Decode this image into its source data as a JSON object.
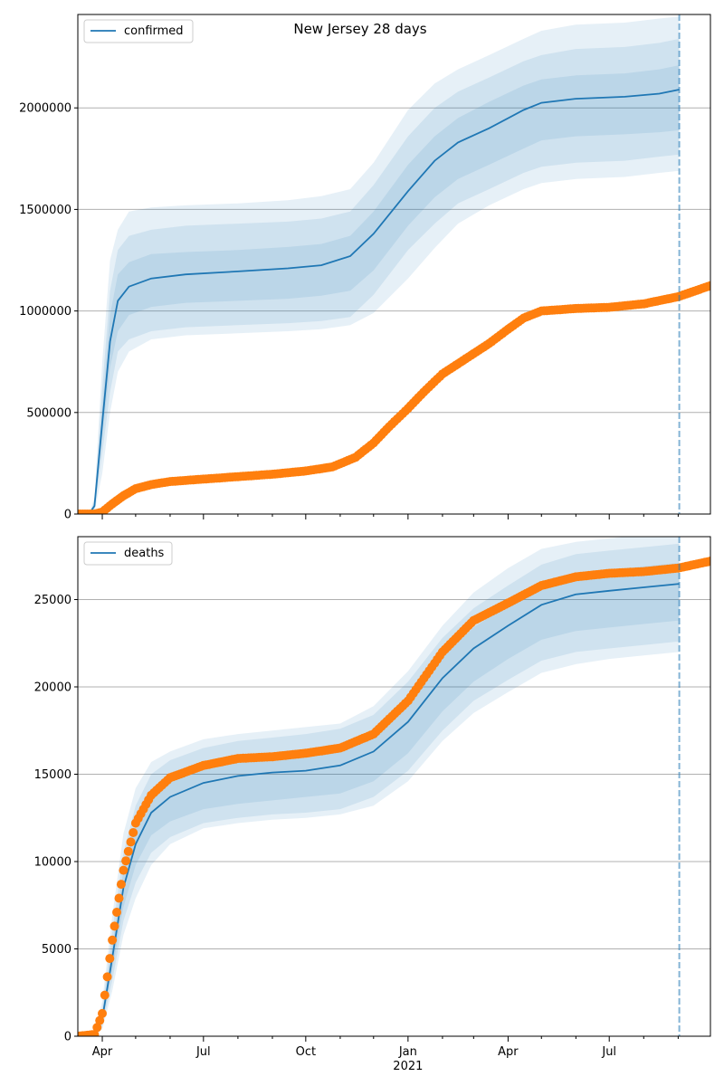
{
  "figure": {
    "title": "New Jersey 28 days"
  },
  "colors": {
    "model": "#1f77b4",
    "observed": "#ff7f0e",
    "grid": "#b0b0b0",
    "axis": "#000000"
  },
  "x_axis": {
    "range": [
      "2020-03-10",
      "2021-09-30"
    ],
    "major_ticks": [
      {
        "date": "2020-04-01",
        "label": "Apr"
      },
      {
        "date": "2020-07-01",
        "label": "Jul"
      },
      {
        "date": "2020-10-01",
        "label": "Oct"
      },
      {
        "date": "2021-01-01",
        "label": "Jan"
      },
      {
        "date": "2021-04-01",
        "label": "Apr"
      },
      {
        "date": "2021-07-01",
        "label": "Jul"
      }
    ],
    "year_label": "2021",
    "minor_ticks": [
      "2020-05-01",
      "2020-06-01",
      "2020-08-01",
      "2020-09-01",
      "2020-11-01",
      "2020-12-01",
      "2021-02-01",
      "2021-03-01",
      "2021-05-01",
      "2021-06-01",
      "2021-08-01",
      "2021-09-01"
    ],
    "forecast_date": "2021-09-02"
  },
  "chart_data": [
    {
      "type": "line",
      "legend": "confirmed",
      "legend_position": "upper-left",
      "grid": "horizontal",
      "ylim": [
        0,
        2460000
      ],
      "yticks": [
        0,
        500000,
        1000000,
        1500000,
        2000000
      ],
      "ytick_labels": [
        "0",
        "500000",
        "1000000",
        "1500000",
        "2000000"
      ],
      "model": [
        {
          "date": "2020-03-10",
          "mid": 0,
          "i1": [
            0,
            0
          ],
          "i2": [
            0,
            0
          ],
          "i3": [
            0,
            0
          ]
        },
        {
          "date": "2020-03-20",
          "mid": 0,
          "i1": [
            0,
            0
          ],
          "i2": [
            0,
            0
          ],
          "i3": [
            0,
            0
          ]
        },
        {
          "date": "2020-03-25",
          "mid": 40000,
          "i1": [
            30000,
            50000
          ],
          "i2": [
            20000,
            60000
          ],
          "i3": [
            10000,
            80000
          ]
        },
        {
          "date": "2020-04-01",
          "mid": 450000,
          "i1": [
            380000,
            520000
          ],
          "i2": [
            300000,
            620000
          ],
          "i3": [
            200000,
            750000
          ]
        },
        {
          "date": "2020-04-08",
          "mid": 850000,
          "i1": [
            720000,
            980000
          ],
          "i2": [
            600000,
            1100000
          ],
          "i3": [
            500000,
            1250000
          ]
        },
        {
          "date": "2020-04-15",
          "mid": 1050000,
          "i1": [
            900000,
            1180000
          ],
          "i2": [
            800000,
            1300000
          ],
          "i3": [
            700000,
            1400000
          ]
        },
        {
          "date": "2020-04-25",
          "mid": 1120000,
          "i1": [
            980000,
            1240000
          ],
          "i2": [
            860000,
            1370000
          ],
          "i3": [
            800000,
            1490000
          ]
        },
        {
          "date": "2020-05-15",
          "mid": 1160000,
          "i1": [
            1020000,
            1280000
          ],
          "i2": [
            900000,
            1400000
          ],
          "i3": [
            860000,
            1510000
          ]
        },
        {
          "date": "2020-06-15",
          "mid": 1180000,
          "i1": [
            1040000,
            1290000
          ],
          "i2": [
            920000,
            1420000
          ],
          "i3": [
            880000,
            1520000
          ]
        },
        {
          "date": "2020-08-01",
          "mid": 1195000,
          "i1": [
            1050000,
            1300000
          ],
          "i2": [
            930000,
            1430000
          ],
          "i3": [
            890000,
            1530000
          ]
        },
        {
          "date": "2020-09-15",
          "mid": 1210000,
          "i1": [
            1060000,
            1315000
          ],
          "i2": [
            940000,
            1440000
          ],
          "i3": [
            900000,
            1545000
          ]
        },
        {
          "date": "2020-10-15",
          "mid": 1225000,
          "i1": [
            1075000,
            1330000
          ],
          "i2": [
            950000,
            1455000
          ],
          "i3": [
            910000,
            1565000
          ]
        },
        {
          "date": "2020-11-10",
          "mid": 1270000,
          "i1": [
            1100000,
            1370000
          ],
          "i2": [
            970000,
            1490000
          ],
          "i3": [
            930000,
            1600000
          ]
        },
        {
          "date": "2020-12-01",
          "mid": 1380000,
          "i1": [
            1200000,
            1490000
          ],
          "i2": [
            1080000,
            1620000
          ],
          "i3": [
            990000,
            1730000
          ]
        },
        {
          "date": "2021-01-01",
          "mid": 1590000,
          "i1": [
            1420000,
            1720000
          ],
          "i2": [
            1300000,
            1860000
          ],
          "i3": [
            1160000,
            1990000
          ]
        },
        {
          "date": "2021-01-25",
          "mid": 1740000,
          "i1": [
            1560000,
            1860000
          ],
          "i2": [
            1430000,
            2000000
          ],
          "i3": [
            1310000,
            2120000
          ]
        },
        {
          "date": "2021-02-15",
          "mid": 1830000,
          "i1": [
            1650000,
            1950000
          ],
          "i2": [
            1530000,
            2080000
          ],
          "i3": [
            1430000,
            2190000
          ]
        },
        {
          "date": "2021-03-15",
          "mid": 1900000,
          "i1": [
            1720000,
            2030000
          ],
          "i2": [
            1600000,
            2150000
          ],
          "i3": [
            1520000,
            2260000
          ]
        },
        {
          "date": "2021-04-15",
          "mid": 1990000,
          "i1": [
            1800000,
            2110000
          ],
          "i2": [
            1680000,
            2230000
          ],
          "i3": [
            1600000,
            2340000
          ]
        },
        {
          "date": "2021-05-01",
          "mid": 2025000,
          "i1": [
            1840000,
            2140000
          ],
          "i2": [
            1710000,
            2260000
          ],
          "i3": [
            1630000,
            2380000
          ]
        },
        {
          "date": "2021-06-01",
          "mid": 2045000,
          "i1": [
            1860000,
            2160000
          ],
          "i2": [
            1730000,
            2290000
          ],
          "i3": [
            1650000,
            2410000
          ]
        },
        {
          "date": "2021-07-15",
          "mid": 2055000,
          "i1": [
            1870000,
            2170000
          ],
          "i2": [
            1740000,
            2300000
          ],
          "i3": [
            1660000,
            2420000
          ]
        },
        {
          "date": "2021-08-15",
          "mid": 2070000,
          "i1": [
            1880000,
            2190000
          ],
          "i2": [
            1760000,
            2320000
          ],
          "i3": [
            1680000,
            2440000
          ]
        },
        {
          "date": "2021-09-02",
          "mid": 2090000,
          "i1": [
            1890000,
            2210000
          ],
          "i2": [
            1770000,
            2340000
          ],
          "i3": [
            1690000,
            2450000
          ]
        }
      ],
      "observed": [
        {
          "date": "2020-03-10",
          "value": 0
        },
        {
          "date": "2020-03-25",
          "value": 0
        },
        {
          "date": "2020-04-01",
          "value": 10000
        },
        {
          "date": "2020-04-10",
          "value": 50000
        },
        {
          "date": "2020-04-20",
          "value": 90000
        },
        {
          "date": "2020-05-01",
          "value": 125000
        },
        {
          "date": "2020-05-15",
          "value": 145000
        },
        {
          "date": "2020-06-01",
          "value": 160000
        },
        {
          "date": "2020-07-01",
          "value": 172000
        },
        {
          "date": "2020-08-01",
          "value": 184000
        },
        {
          "date": "2020-09-01",
          "value": 196000
        },
        {
          "date": "2020-10-01",
          "value": 212000
        },
        {
          "date": "2020-10-25",
          "value": 232000
        },
        {
          "date": "2020-11-15",
          "value": 280000
        },
        {
          "date": "2020-12-01",
          "value": 350000
        },
        {
          "date": "2020-12-15",
          "value": 430000
        },
        {
          "date": "2021-01-01",
          "value": 520000
        },
        {
          "date": "2021-01-15",
          "value": 600000
        },
        {
          "date": "2021-02-01",
          "value": 690000
        },
        {
          "date": "2021-02-15",
          "value": 740000
        },
        {
          "date": "2021-03-01",
          "value": 790000
        },
        {
          "date": "2021-03-15",
          "value": 840000
        },
        {
          "date": "2021-04-01",
          "value": 910000
        },
        {
          "date": "2021-04-15",
          "value": 965000
        },
        {
          "date": "2021-05-01",
          "value": 1000000
        },
        {
          "date": "2021-06-01",
          "value": 1012000
        },
        {
          "date": "2021-07-01",
          "value": 1018000
        },
        {
          "date": "2021-08-01",
          "value": 1035000
        },
        {
          "date": "2021-09-01",
          "value": 1070000
        },
        {
          "date": "2021-09-30",
          "value": 1125000
        }
      ]
    },
    {
      "type": "line",
      "legend": "deaths",
      "legend_position": "upper-left",
      "grid": "horizontal",
      "ylim": [
        0,
        28600
      ],
      "yticks": [
        0,
        5000,
        10000,
        15000,
        20000,
        25000
      ],
      "ytick_labels": [
        "0",
        "5000",
        "10000",
        "15000",
        "20000",
        "25000"
      ],
      "model": [
        {
          "date": "2020-03-10",
          "mid": 0,
          "i1": [
            0,
            0
          ],
          "i2": [
            0,
            0
          ],
          "i3": [
            0,
            0
          ]
        },
        {
          "date": "2020-03-25",
          "mid": 100,
          "i1": [
            80,
            120
          ],
          "i2": [
            60,
            150
          ],
          "i3": [
            40,
            180
          ]
        },
        {
          "date": "2020-04-01",
          "mid": 1000,
          "i1": [
            800,
            1300
          ],
          "i2": [
            600,
            1600
          ],
          "i3": [
            400,
            2000
          ]
        },
        {
          "date": "2020-04-10",
          "mid": 4500,
          "i1": [
            3800,
            5200
          ],
          "i2": [
            3200,
            6000
          ],
          "i3": [
            2600,
            6900
          ]
        },
        {
          "date": "2020-04-20",
          "mid": 8500,
          "i1": [
            7400,
            9500
          ],
          "i2": [
            6600,
            10500
          ],
          "i3": [
            5800,
            11600
          ]
        },
        {
          "date": "2020-05-01",
          "mid": 11000,
          "i1": [
            9800,
            12100
          ],
          "i2": [
            8800,
            13200
          ],
          "i3": [
            7900,
            14200
          ]
        },
        {
          "date": "2020-05-15",
          "mid": 12800,
          "i1": [
            11500,
            13900
          ],
          "i2": [
            10500,
            15000
          ],
          "i3": [
            9800,
            15700
          ]
        },
        {
          "date": "2020-06-01",
          "mid": 13700,
          "i1": [
            12300,
            14800
          ],
          "i2": [
            11400,
            15800
          ],
          "i3": [
            11000,
            16300
          ]
        },
        {
          "date": "2020-07-01",
          "mid": 14500,
          "i1": [
            13000,
            15600
          ],
          "i2": [
            12200,
            16500
          ],
          "i3": [
            11900,
            17000
          ]
        },
        {
          "date": "2020-08-01",
          "mid": 14900,
          "i1": [
            13300,
            16000
          ],
          "i2": [
            12500,
            16900
          ],
          "i3": [
            12200,
            17300
          ]
        },
        {
          "date": "2020-09-01",
          "mid": 15100,
          "i1": [
            13500,
            16200
          ],
          "i2": [
            12700,
            17100
          ],
          "i3": [
            12400,
            17500
          ]
        },
        {
          "date": "2020-10-01",
          "mid": 15200,
          "i1": [
            13700,
            16300
          ],
          "i2": [
            12800,
            17300
          ],
          "i3": [
            12500,
            17700
          ]
        },
        {
          "date": "2020-11-01",
          "mid": 15500,
          "i1": [
            13900,
            16600
          ],
          "i2": [
            13000,
            17600
          ],
          "i3": [
            12700,
            17900
          ]
        },
        {
          "date": "2020-12-01",
          "mid": 16300,
          "i1": [
            14600,
            17400
          ],
          "i2": [
            13700,
            18400
          ],
          "i3": [
            13200,
            18900
          ]
        },
        {
          "date": "2021-01-01",
          "mid": 18000,
          "i1": [
            16200,
            19200
          ],
          "i2": [
            15200,
            20300
          ],
          "i3": [
            14600,
            20900
          ]
        },
        {
          "date": "2021-02-01",
          "mid": 20500,
          "i1": [
            18600,
            21700
          ],
          "i2": [
            17500,
            22800
          ],
          "i3": [
            16900,
            23500
          ]
        },
        {
          "date": "2021-03-01",
          "mid": 22200,
          "i1": [
            20300,
            23400
          ],
          "i2": [
            19200,
            24500
          ],
          "i3": [
            18500,
            25400
          ]
        },
        {
          "date": "2021-04-01",
          "mid": 23500,
          "i1": [
            21600,
            24700
          ],
          "i2": [
            20400,
            25800
          ],
          "i3": [
            19700,
            26800
          ]
        },
        {
          "date": "2021-05-01",
          "mid": 24700,
          "i1": [
            22700,
            25900
          ],
          "i2": [
            21500,
            27000
          ],
          "i3": [
            20800,
            27900
          ]
        },
        {
          "date": "2021-06-01",
          "mid": 25300,
          "i1": [
            23200,
            26500
          ],
          "i2": [
            22000,
            27600
          ],
          "i3": [
            21300,
            28300
          ]
        },
        {
          "date": "2021-07-01",
          "mid": 25500,
          "i1": [
            23400,
            26700
          ],
          "i2": [
            22200,
            27800
          ],
          "i3": [
            21600,
            28500
          ]
        },
        {
          "date": "2021-08-01",
          "mid": 25700,
          "i1": [
            23600,
            26900
          ],
          "i2": [
            22400,
            28000
          ],
          "i3": [
            21800,
            28700
          ]
        },
        {
          "date": "2021-09-02",
          "mid": 25900,
          "i1": [
            23800,
            27100
          ],
          "i2": [
            22600,
            28200
          ],
          "i3": [
            22000,
            28900
          ]
        }
      ],
      "observed": [
        {
          "date": "2020-03-10",
          "value": 0
        },
        {
          "date": "2020-03-25",
          "value": 100
        },
        {
          "date": "2020-04-01",
          "value": 1300
        },
        {
          "date": "2020-04-10",
          "value": 5500
        },
        {
          "date": "2020-04-20",
          "value": 9500
        },
        {
          "date": "2020-05-01",
          "value": 12200
        },
        {
          "date": "2020-05-15",
          "value": 13800
        },
        {
          "date": "2020-06-01",
          "value": 14800
        },
        {
          "date": "2020-07-01",
          "value": 15500
        },
        {
          "date": "2020-08-01",
          "value": 15900
        },
        {
          "date": "2020-09-01",
          "value": 16000
        },
        {
          "date": "2020-10-01",
          "value": 16200
        },
        {
          "date": "2020-11-01",
          "value": 16500
        },
        {
          "date": "2020-12-01",
          "value": 17300
        },
        {
          "date": "2021-01-01",
          "value": 19200
        },
        {
          "date": "2021-02-01",
          "value": 22000
        },
        {
          "date": "2021-03-01",
          "value": 23800
        },
        {
          "date": "2021-04-01",
          "value": 24800
        },
        {
          "date": "2021-05-01",
          "value": 25800
        },
        {
          "date": "2021-06-01",
          "value": 26300
        },
        {
          "date": "2021-07-01",
          "value": 26500
        },
        {
          "date": "2021-08-01",
          "value": 26600
        },
        {
          "date": "2021-09-01",
          "value": 26800
        },
        {
          "date": "2021-09-30",
          "value": 27200
        }
      ]
    }
  ]
}
